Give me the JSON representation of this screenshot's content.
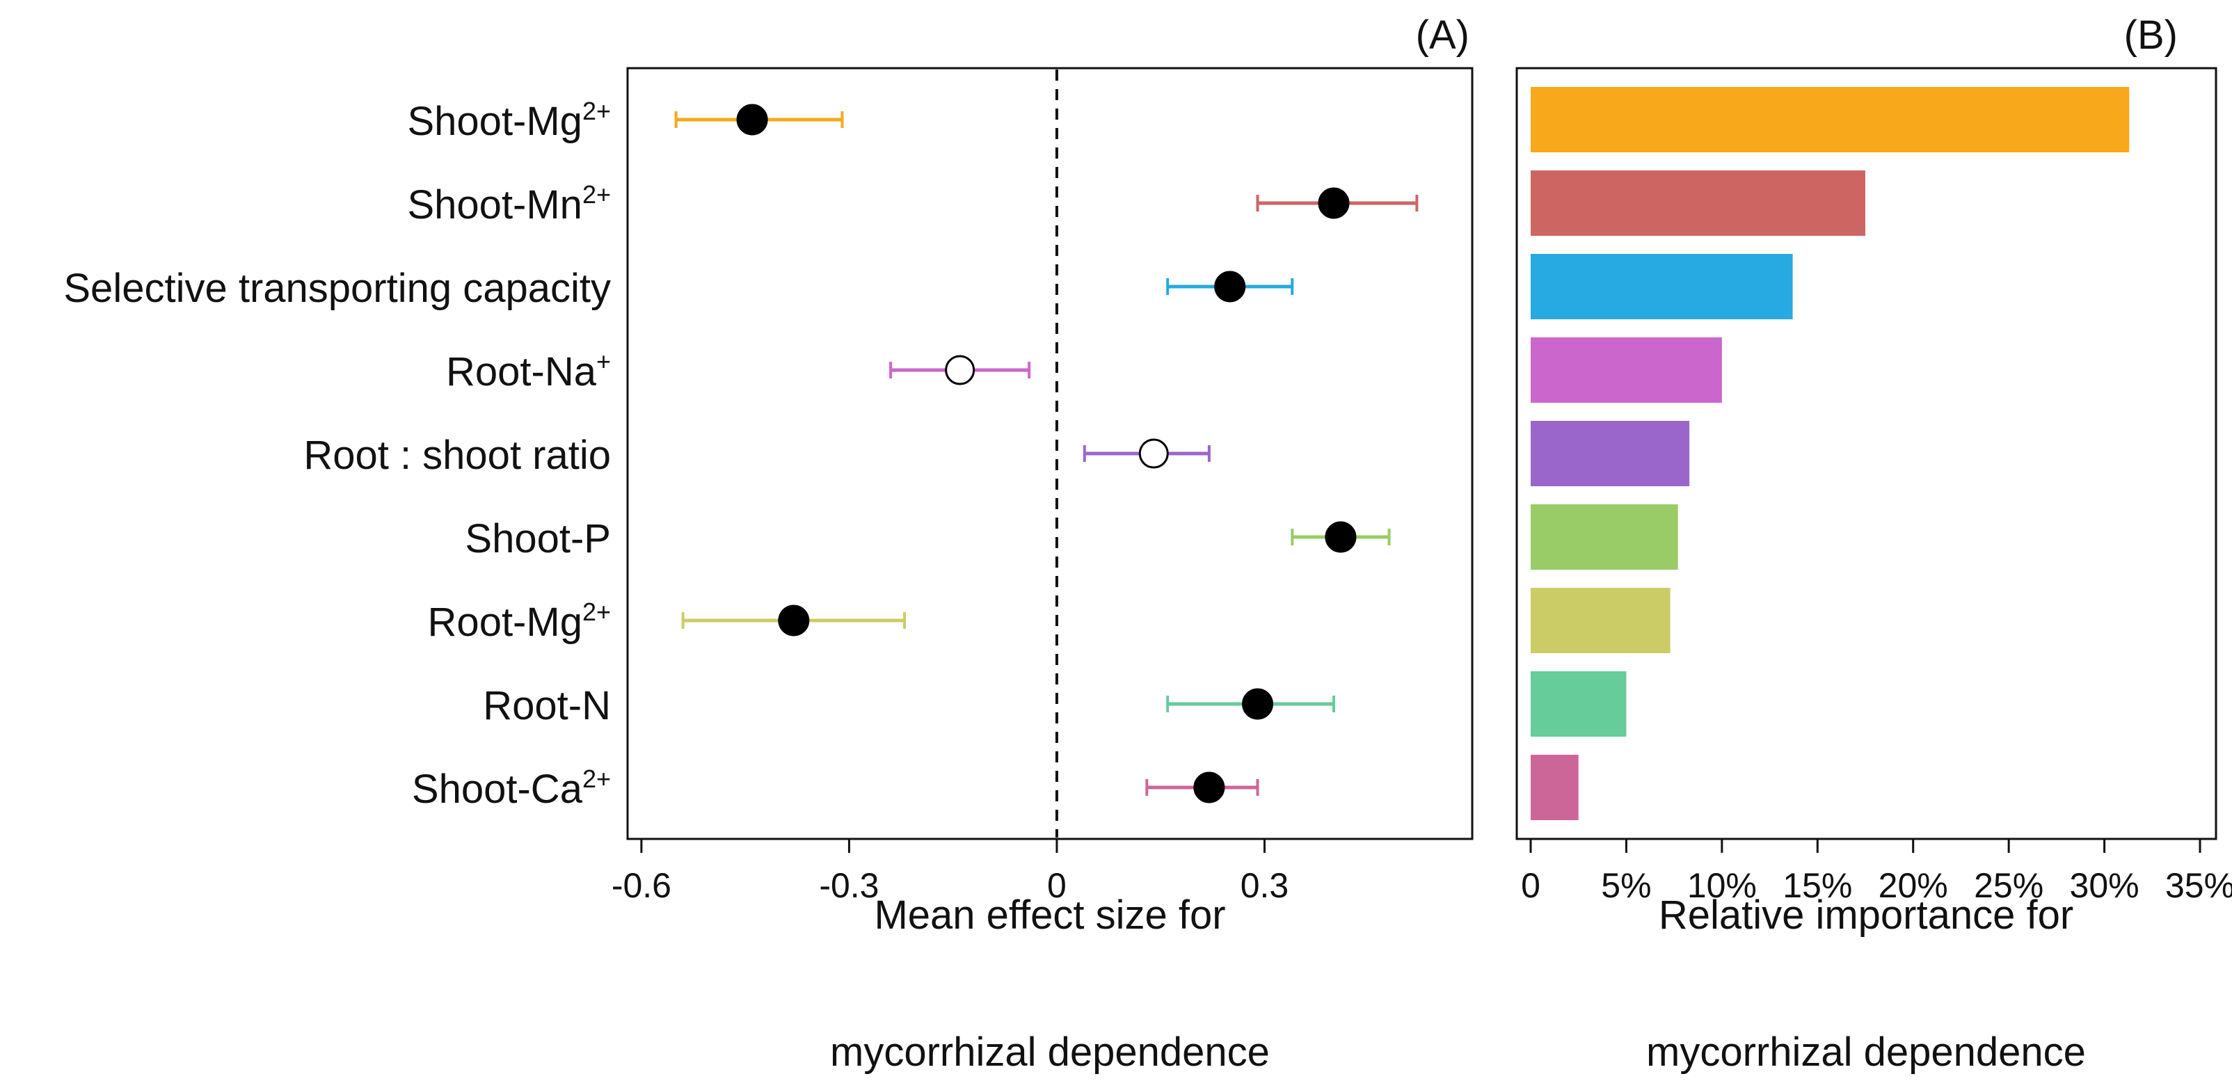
{
  "chart_data": [
    {
      "type": "scatter",
      "panel_label": "(A)",
      "xlabel_line1": "Mean effect size for",
      "xlabel_line2": "mycorrhizal dependence",
      "xlim": [
        -0.62,
        0.6
      ],
      "xticks": [
        -0.6,
        -0.3,
        0,
        0.3
      ],
      "xtick_labels": [
        "-0.6",
        "-0.3",
        "0",
        "0.3"
      ],
      "reference_line": 0,
      "categories": [
        {
          "label": "Shoot-Mg",
          "sup": "2+"
        },
        {
          "label": "Shoot-Mn",
          "sup": "2+"
        },
        {
          "label": "Selective transporting capacity",
          "sup": ""
        },
        {
          "label": "Root-Na",
          "sup": "+"
        },
        {
          "label": "Root : shoot ratio",
          "sup": ""
        },
        {
          "label": "Shoot-P",
          "sup": ""
        },
        {
          "label": "Root-Mg",
          "sup": "2+"
        },
        {
          "label": "Root-N",
          "sup": ""
        },
        {
          "label": "Shoot-Ca",
          "sup": "2+"
        }
      ],
      "points": [
        {
          "mean": -0.44,
          "low": -0.55,
          "high": -0.31,
          "significant": true
        },
        {
          "mean": 0.4,
          "low": 0.29,
          "high": 0.52,
          "significant": true
        },
        {
          "mean": 0.25,
          "low": 0.16,
          "high": 0.34,
          "significant": true
        },
        {
          "mean": -0.14,
          "low": -0.24,
          "high": -0.04,
          "significant": false
        },
        {
          "mean": 0.14,
          "low": 0.04,
          "high": 0.22,
          "significant": false
        },
        {
          "mean": 0.41,
          "low": 0.34,
          "high": 0.48,
          "significant": true
        },
        {
          "mean": -0.38,
          "low": -0.54,
          "high": -0.22,
          "significant": true
        },
        {
          "mean": 0.29,
          "low": 0.16,
          "high": 0.4,
          "significant": true
        },
        {
          "mean": 0.22,
          "low": 0.13,
          "high": 0.29,
          "significant": true
        }
      ]
    },
    {
      "type": "bar",
      "orientation": "horizontal",
      "panel_label": "(B)",
      "xlabel_line1": "Relative importance for",
      "xlabel_line2": "mycorrhizal dependence",
      "xlim": [
        0,
        35
      ],
      "xticks": [
        0,
        5,
        10,
        15,
        20,
        25,
        30,
        35
      ],
      "xtick_labels": [
        "0",
        "5%",
        "10%",
        "15%",
        "20%",
        "25%",
        "30%",
        "35%"
      ],
      "values": [
        31.3,
        17.5,
        13.7,
        10.0,
        8.3,
        7.7,
        7.3,
        5.0,
        2.5
      ]
    }
  ],
  "series_colors": [
    "#f8a81b",
    "#cd6663",
    "#27a9e1",
    "#cb66cc",
    "#9b66cc",
    "#99cc66",
    "#cccc66",
    "#66cc99",
    "#cc6699"
  ]
}
